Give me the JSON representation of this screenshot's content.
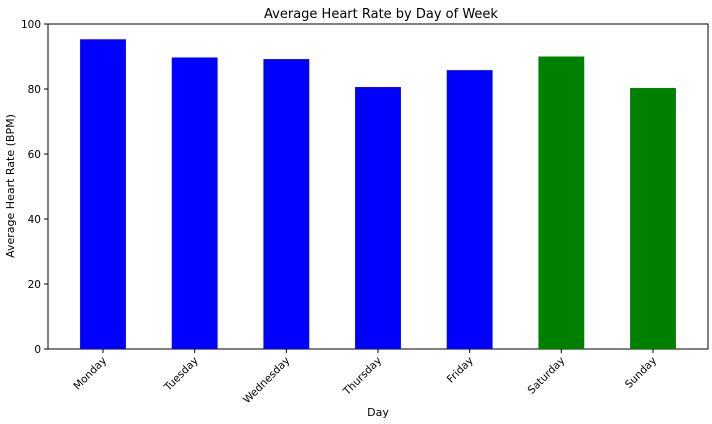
{
  "chart_data": {
    "type": "bar",
    "title": "Average Heart Rate by Day of Week",
    "xlabel": "Day",
    "ylabel": "Average Heart Rate (BPM)",
    "categories": [
      "Monday",
      "Tuesday",
      "Wednesday",
      "Thursday",
      "Friday",
      "Saturday",
      "Sunday"
    ],
    "values": [
      95.3,
      89.7,
      89.2,
      80.6,
      85.8,
      90.0,
      80.3
    ],
    "colors": [
      "#0000ff",
      "#0000ff",
      "#0000ff",
      "#0000ff",
      "#0000ff",
      "#008000",
      "#008000"
    ],
    "ylim": [
      0,
      100
    ],
    "yticks": [
      0,
      20,
      40,
      60,
      80,
      100
    ],
    "grid": false,
    "legend": "none"
  }
}
